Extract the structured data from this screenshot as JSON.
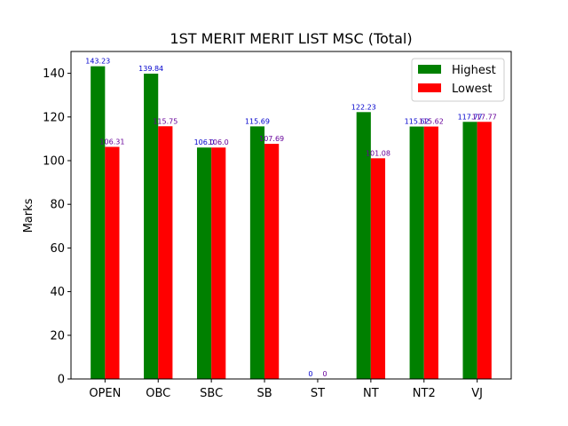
{
  "chart_data": {
    "type": "bar",
    "title": "1ST MERIT MERIT LIST MSC (Total)",
    "xlabel": "",
    "ylabel": "Marks",
    "ylim": [
      0,
      150
    ],
    "yticks": [
      0,
      20,
      40,
      60,
      80,
      100,
      120,
      140
    ],
    "categories": [
      "OPEN",
      "OBC",
      "SBC",
      "SB",
      "ST",
      "NT",
      "NT2",
      "VJ"
    ],
    "series": [
      {
        "name": "Highest",
        "color": "#008000",
        "values": [
          143.23,
          139.84,
          106.0,
          115.69,
          0,
          122.23,
          115.62,
          117.77
        ],
        "labels": [
          "143.23",
          "139.84",
          "106.0",
          "115.69",
          "0",
          "122.23",
          "115.62",
          "117.77"
        ],
        "label_color": "#0000cc"
      },
      {
        "name": "Lowest",
        "color": "#ff0000",
        "values": [
          106.31,
          115.75,
          106.0,
          107.69,
          0,
          101.08,
          115.62,
          117.77
        ],
        "labels": [
          "106.31",
          "115.75",
          "106.0",
          "107.69",
          "0",
          "101.08",
          "115.62",
          "117.77"
        ],
        "label_color": "#660099"
      }
    ],
    "legend": {
      "position": "top-right"
    },
    "grid": false
  }
}
